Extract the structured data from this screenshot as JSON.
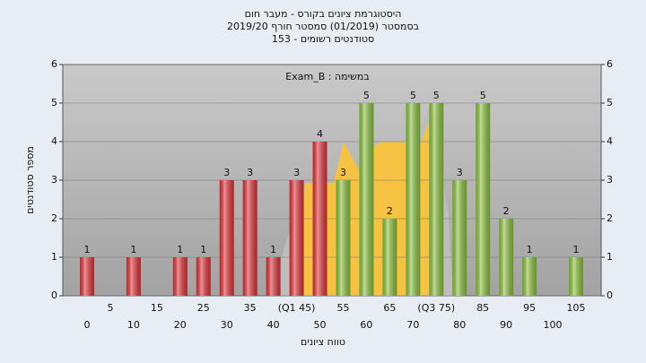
{
  "chart_data": {
    "type": "bar",
    "title": "היסטוגרמת ציונים בקורס - מעבר חום",
    "subtitle": "בסמסטר  (01/2019)  סמסטר חורף 2019/20",
    "subtitle2": "סטודנטים רשומים - 153",
    "annotation": "Exam_B : במשימה",
    "x_label": "טווח ציונים",
    "y_label": "מספר סטודנטים",
    "categories": [
      "0",
      "5",
      "10",
      "15",
      "20",
      "25",
      "30",
      "35",
      "40",
      "(Q1 45)",
      "50",
      "55",
      "60",
      "65",
      "70",
      "(Q3 75)",
      "80",
      "85",
      "90",
      "95",
      "100",
      "105"
    ],
    "values": [
      1,
      null,
      1,
      null,
      1,
      1,
      3,
      3,
      1,
      3,
      4,
      3,
      5,
      2,
      5,
      5,
      3,
      5,
      2,
      1,
      null,
      1
    ],
    "colors": [
      "#e3343a",
      "#e3343a",
      "#e3343a",
      "#e3343a",
      "#e3343a",
      "#e3343a",
      "#e3343a",
      "#e3343a",
      "#e3343a",
      "#e3343a",
      "#e3343a",
      "#8cc43e",
      "#8cc43e",
      "#8cc43e",
      "#8cc43e",
      "#8cc43e",
      "#8cc43e",
      "#8cc43e",
      "#8cc43e",
      "#8cc43e",
      "#8cc43e",
      "#8cc43e"
    ],
    "ylim": [
      0,
      6
    ],
    "yticks": [
      0,
      1,
      2,
      3,
      4,
      5,
      6
    ],
    "y2lim": [
      0,
      6
    ],
    "y2ticks": [
      0,
      1,
      2,
      3,
      4,
      5,
      6
    ],
    "grid": true
  }
}
